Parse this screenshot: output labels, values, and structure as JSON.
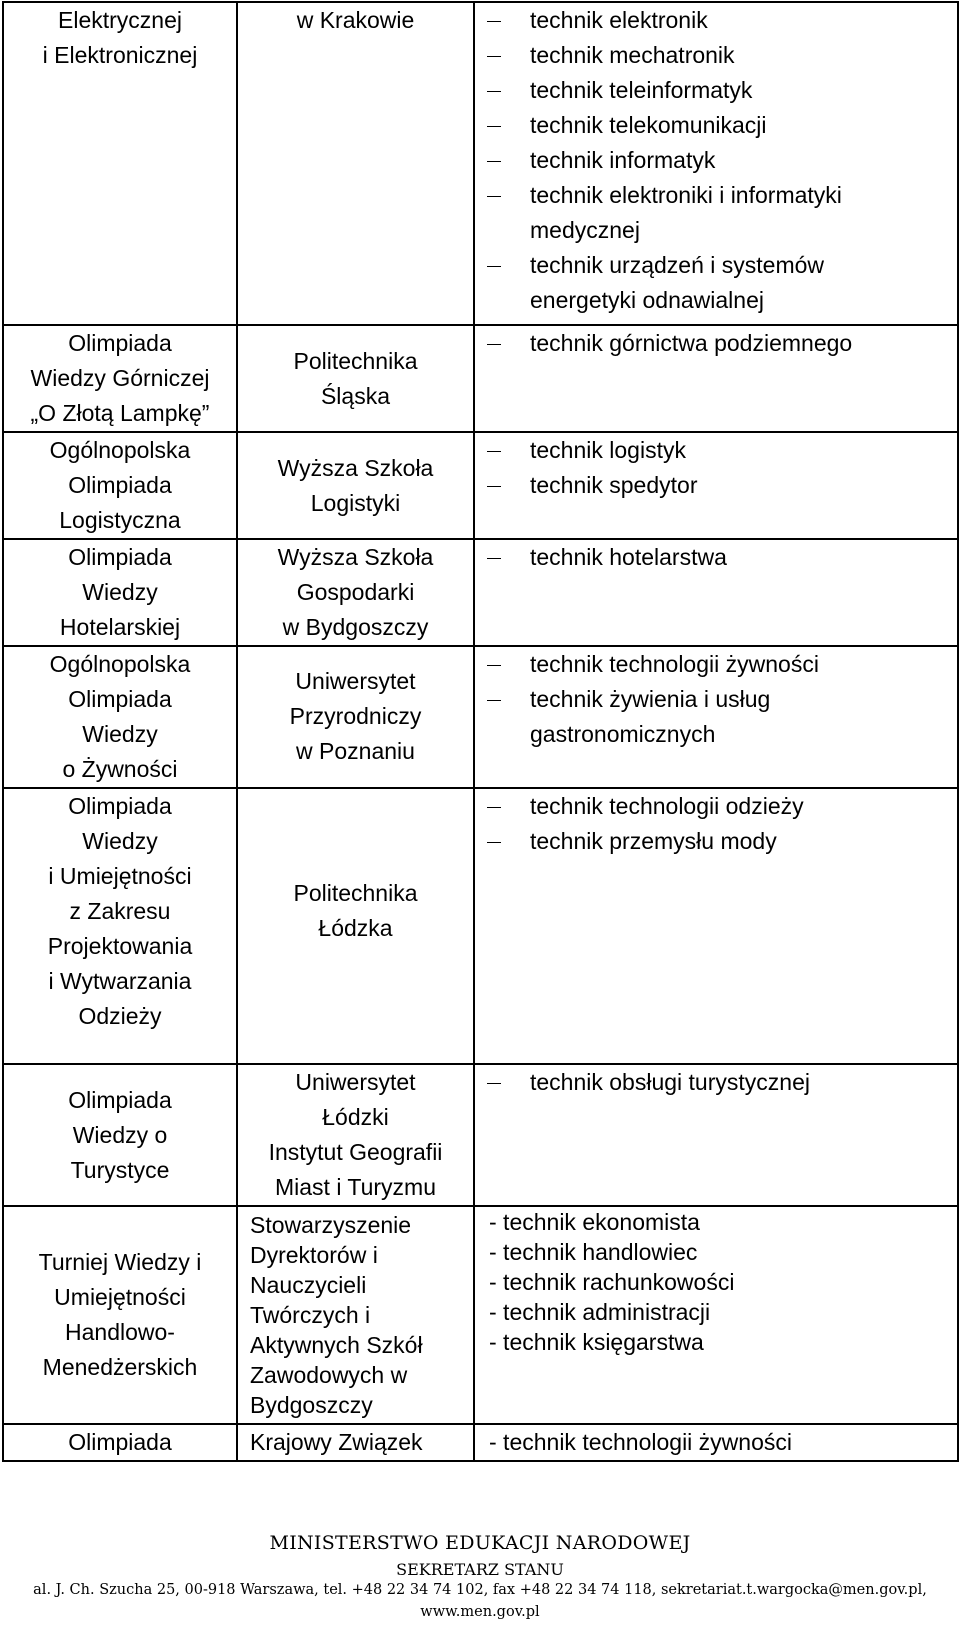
{
  "rows": [
    {
      "olympiad": [
        "Elektrycznej",
        "i Elektronicznej"
      ],
      "organizer": [
        "w Krakowie"
      ],
      "professions": [
        [
          "technik elektronik"
        ],
        [
          "technik mechatronik"
        ],
        [
          "technik teleinformatyk"
        ],
        [
          "technik telekomunikacji"
        ],
        [
          "technik informatyk"
        ],
        [
          "technik elektroniki i informatyki",
          "medycznej"
        ],
        [
          "technik urządzeń i systemów",
          "energetyki odnawialnej"
        ]
      ]
    },
    {
      "olympiad": [
        "Olimpiada",
        "Wiedzy Górniczej",
        "„O Złotą Lampkę”"
      ],
      "organizer": [
        "Politechnika",
        "Śląska"
      ],
      "professions": [
        [
          "technik górnictwa podziemnego"
        ]
      ]
    },
    {
      "olympiad": [
        "Ogólnopolska",
        "Olimpiada",
        "Logistyczna"
      ],
      "organizer": [
        "Wyższa Szkoła",
        "Logistyki"
      ],
      "professions": [
        [
          "technik logistyk"
        ],
        [
          "technik spedytor"
        ]
      ]
    },
    {
      "olympiad": [
        "Olimpiada",
        "Wiedzy",
        "Hotelarskiej"
      ],
      "organizer": [
        "Wyższa Szkoła",
        "Gospodarki",
        "w Bydgoszczy"
      ],
      "professions": [
        [
          "technik hotelarstwa"
        ]
      ]
    },
    {
      "olympiad": [
        "Ogólnopolska",
        "Olimpiada",
        "Wiedzy",
        "o Żywności"
      ],
      "organizer": [
        "Uniwersytet",
        "Przyrodniczy",
        "w Poznaniu"
      ],
      "professions": [
        [
          "technik technologii żywności"
        ],
        [
          "technik żywienia i usług",
          "gastronomicznych"
        ]
      ]
    },
    {
      "olympiad": [
        "Olimpiada",
        "Wiedzy",
        "i Umiejętności",
        "z Zakresu",
        "Projektowania",
        "i Wytwarzania",
        "Odzieży"
      ],
      "organizer": [
        "Politechnika",
        "Łódzka"
      ],
      "professions": [
        [
          "technik technologii odzieży"
        ],
        [
          "technik przemysłu mody"
        ]
      ]
    },
    {
      "olympiad": [
        "Olimpiada",
        "Wiedzy o",
        "Turystyce"
      ],
      "organizer": [
        "Uniwersytet",
        "Łódzki",
        "Instytut Geografii",
        "Miast i Turyzmu"
      ],
      "professions": [
        [
          "technik obsługi turystycznej"
        ]
      ]
    },
    {
      "olympiad": [
        "Turniej Wiedzy i",
        "Umiejętności",
        "Handlowo-",
        "Menedżerskich"
      ],
      "organizer": [
        "Stowarzyszenie",
        "Dyrektorów i",
        "Nauczycieli",
        "Twórczych i",
        "Aktywnych Szkół",
        "Zawodowych w",
        "Bydgoszczy"
      ],
      "dash_list": [
        "- technik ekonomista",
        "- technik handlowiec",
        "- technik rachunkowości",
        "- technik administracji",
        "- technik księgarstwa"
      ]
    },
    {
      "olympiad": [
        "Olimpiada"
      ],
      "organizer": [
        "Krajowy Związek"
      ],
      "dash_list": [
        "- technik technologii żywności"
      ]
    }
  ],
  "footer": {
    "ministry": "MINISTERSTWO EDUKACJI NARODOWEJ",
    "position": "SEKRETARZ STANU",
    "address": "al. J. Ch. Szucha 25, 00-918 Warszawa, tel. +48 22 34 74 102, fax +48 22 34 74 118, sekretariat.t.wargocka@men.gov.pl,",
    "website": "www.men.gov.pl"
  }
}
